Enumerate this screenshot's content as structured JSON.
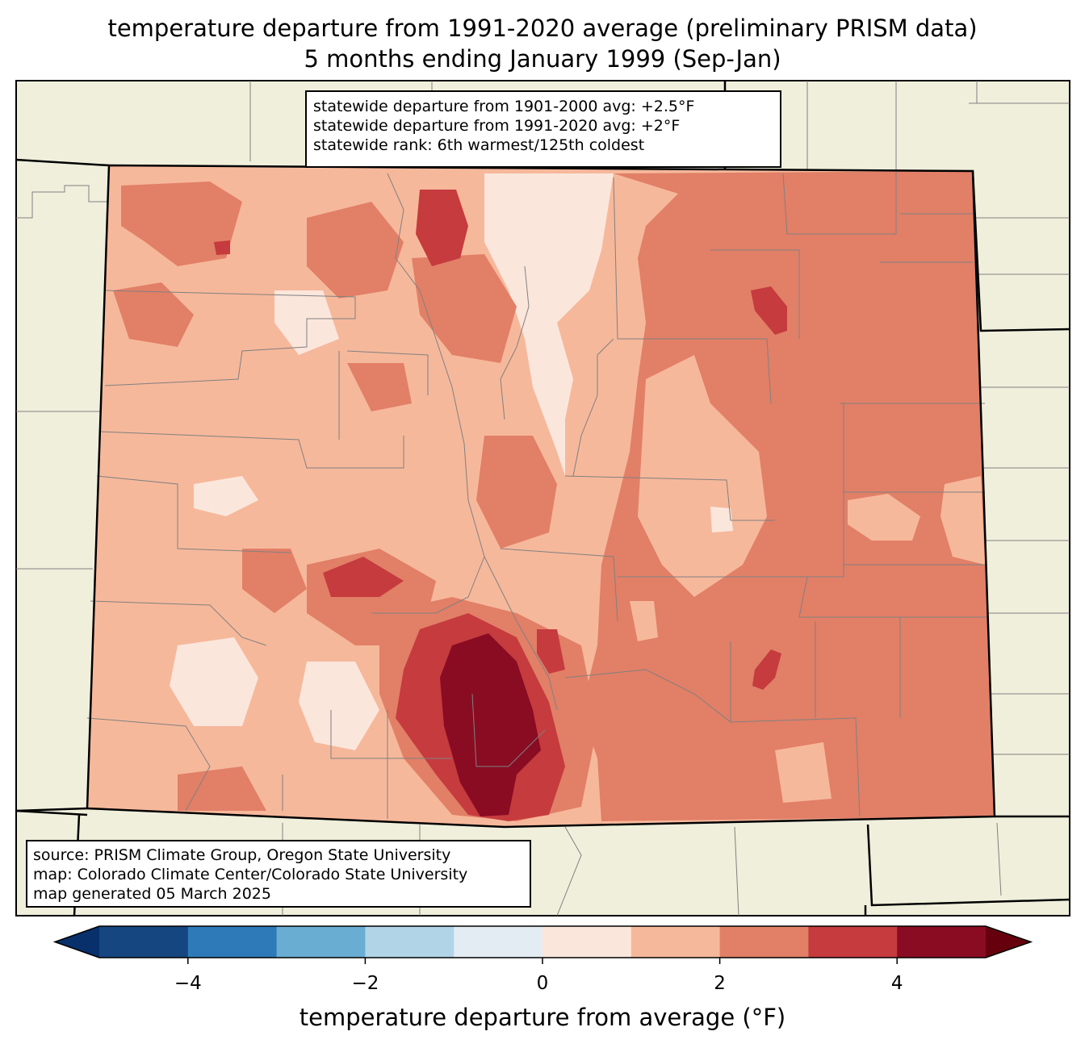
{
  "title": {
    "line1": "temperature departure from 1991-2020 average (preliminary PRISM data)",
    "line2": "5 months ending January 1999 (Sep-Jan)"
  },
  "stats": {
    "line1": "statewide departure from 1901-2000 avg: +2.5°F",
    "line2": "statewide departure from 1991-2020 avg: +2°F",
    "line3": "statewide rank: 6th warmest/125th coldest"
  },
  "source": {
    "line1": "source: PRISM Climate Group, Oregon State University",
    "line2": "map: Colorado Climate Center/Colorado State University",
    "line3": "map generated 05 March 2025"
  },
  "colorbar": {
    "label": "temperature departure from average (°F)",
    "ticks": [
      {
        "value": -4,
        "label": "−4"
      },
      {
        "value": -2,
        "label": "−2"
      },
      {
        "value": 0,
        "label": "0"
      },
      {
        "value": 2,
        "label": "2"
      },
      {
        "value": 4,
        "label": "4"
      }
    ],
    "range": [
      -5,
      5
    ],
    "under_color": "#08306b",
    "over_color": "#67000d",
    "bins": [
      {
        "from": -5,
        "to": -4,
        "color": "#15467f"
      },
      {
        "from": -4,
        "to": -3,
        "color": "#2e7ab8"
      },
      {
        "from": -3,
        "to": -2,
        "color": "#69add2"
      },
      {
        "from": -2,
        "to": -1,
        "color": "#b1d4e7"
      },
      {
        "from": -1,
        "to": 0,
        "color": "#e4ecf3"
      },
      {
        "from": 0,
        "to": 1,
        "color": "#fbe6dc"
      },
      {
        "from": 1,
        "to": 2,
        "color": "#f6b89b"
      },
      {
        "from": 2,
        "to": 3,
        "color": "#e27f67"
      },
      {
        "from": 3,
        "to": 4,
        "color": "#c53b3e"
      },
      {
        "from": 4,
        "to": 5,
        "color": "#8a0c23"
      }
    ]
  },
  "map_colors": {
    "background_land": "#efefdc",
    "state_border": "#000000",
    "county_border": "#808080"
  }
}
